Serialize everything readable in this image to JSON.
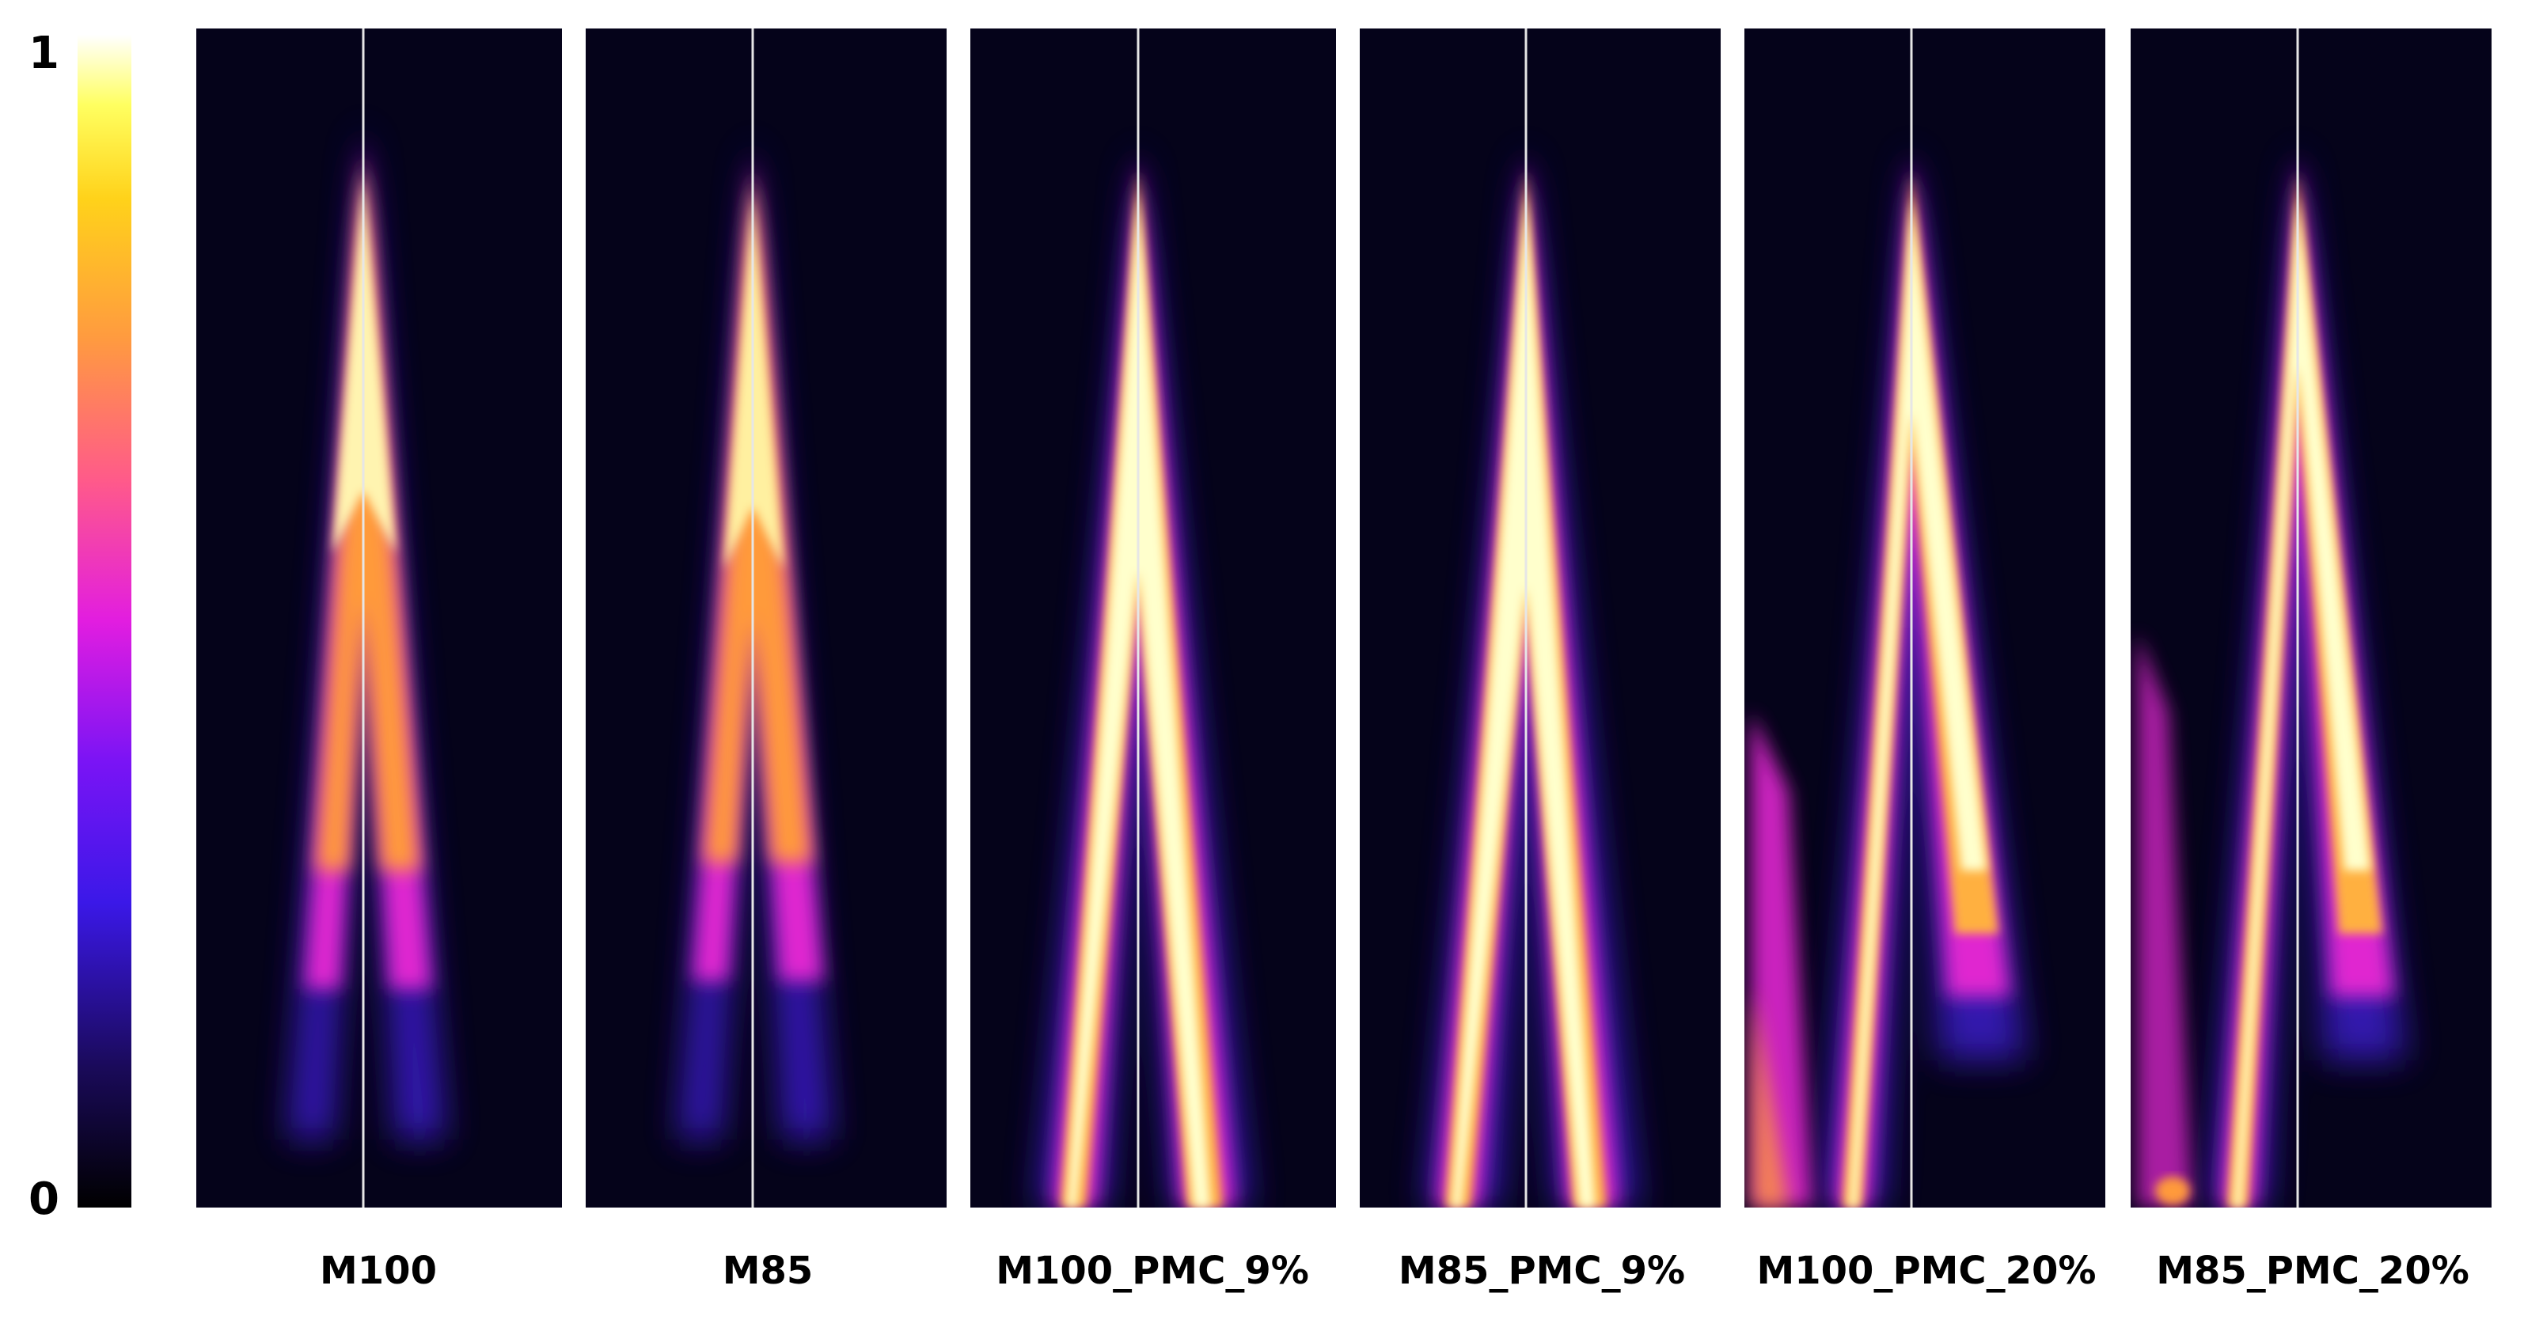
{
  "colorbar": {
    "max_label": "1",
    "min_label": "0",
    "range": [
      0,
      1
    ],
    "colormap": "gnuplot2-like (black → purple → magenta → orange → yellow → white)"
  },
  "panels": [
    {
      "label": "M100",
      "style": "scattered-cone"
    },
    {
      "label": "M85",
      "style": "scattered-cone"
    },
    {
      "label": "M100_PMC_9%",
      "style": "twin-jets"
    },
    {
      "label": "M85_PMC_9%",
      "style": "twin-jets"
    },
    {
      "label": "M100_PMC_20%",
      "style": "twin-jets-side-streak"
    },
    {
      "label": "M85_PMC_20%",
      "style": "twin-jets-side-streak"
    }
  ],
  "colors": {
    "background": "#ffffff",
    "panel_background": "#05031a",
    "centerline": "#e6e6e6",
    "text": "#000000"
  }
}
